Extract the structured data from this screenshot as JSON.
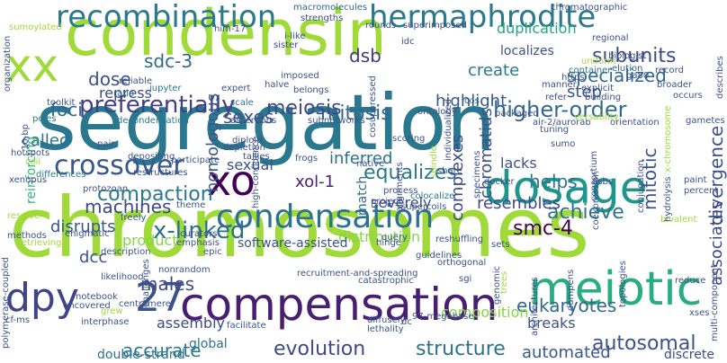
{
  "words": [
    {
      "text": "condensin",
      "color": "#a0da39"
    },
    {
      "text": "segregation",
      "color": "#2a788e"
    },
    {
      "text": "chromosomes",
      "color": "#a0da39"
    },
    {
      "text": "dosage",
      "color": "#1f968b"
    },
    {
      "text": "compensation",
      "color": "#481f70"
    },
    {
      "text": "meiotic",
      "color": "#27ad81"
    },
    {
      "text": "recombination",
      "color": "#2a788e"
    },
    {
      "text": "condensation",
      "color": "#2c728e"
    },
    {
      "text": "hermaphrodite",
      "color": "#2a788e"
    },
    {
      "text": "crossover",
      "color": "#38588c"
    },
    {
      "text": "xo",
      "color": "#440154"
    },
    {
      "text": "dpy",
      "color": "#414487"
    },
    {
      "text": "27",
      "color": "#3b528b"
    },
    {
      "text": "xx",
      "color": "#a0da39"
    },
    {
      "text": "mitosis",
      "color": "#31688e"
    },
    {
      "text": "meiosis",
      "color": "#3e4a89"
    },
    {
      "text": "higher-order",
      "color": "#31688e"
    },
    {
      "text": "preferentially",
      "color": "#433e85"
    },
    {
      "text": "x-linked",
      "color": "#2c728e"
    },
    {
      "text": "compaction",
      "color": "#2a788e"
    },
    {
      "text": "evolution",
      "color": "#3e4989"
    },
    {
      "text": "structure",
      "color": "#2c728e"
    },
    {
      "text": "autosomal",
      "color": "#3b528b"
    },
    {
      "text": "accurate",
      "color": "#2a788e"
    },
    {
      "text": "automated",
      "color": "#39568c"
    },
    {
      "text": "subunits",
      "color": "#3e4a89"
    },
    {
      "text": "specialized",
      "color": "#31688e"
    },
    {
      "text": "equalizes",
      "color": "#2a788e"
    },
    {
      "text": "achieve",
      "color": "#2c728e"
    },
    {
      "text": "smc-4",
      "color": "#440154"
    },
    {
      "text": "dsb",
      "color": "#453781"
    },
    {
      "text": "dose",
      "color": "#3b528b"
    },
    {
      "text": "sdc-3",
      "color": "#31688e"
    },
    {
      "text": "repress",
      "color": "#3e4a89"
    },
    {
      "text": "called",
      "color": "#2c728e"
    },
    {
      "text": "machines",
      "color": "#3e4989"
    },
    {
      "text": "disrupts",
      "color": "#38588c"
    },
    {
      "text": "dcc",
      "color": "#3b528b"
    },
    {
      "text": "males",
      "color": "#3e4a89"
    },
    {
      "text": "sexes",
      "color": "#3b528b"
    },
    {
      "text": "inferred",
      "color": "#2c728e"
    },
    {
      "text": "xol-1",
      "color": "#482576"
    },
    {
      "text": "resembles",
      "color": "#3e4a89"
    },
    {
      "text": "helps",
      "color": "#2a788e"
    },
    {
      "text": "eukaryotes",
      "color": "#31688e"
    },
    {
      "text": "breaks",
      "color": "#3b528b"
    },
    {
      "text": "complexes",
      "color": "#3e4989"
    },
    {
      "text": "chromatids",
      "color": "#3b528b"
    },
    {
      "text": "foci",
      "color": "#31688e"
    },
    {
      "text": "homologous",
      "color": "#38588c"
    },
    {
      "text": "mitotic",
      "color": "#3b528b"
    },
    {
      "text": "divergence",
      "color": "#3b528b"
    },
    {
      "text": "associates",
      "color": "#3e4989"
    },
    {
      "text": "highlight",
      "color": "#39568c"
    },
    {
      "text": "create",
      "color": "#2a788e"
    },
    {
      "text": "step",
      "color": "#3b528b"
    },
    {
      "text": "duplication",
      "color": "#22a884"
    },
    {
      "text": "localizes",
      "color": "#3b528b"
    },
    {
      "text": "distribution",
      "color": "#86d549"
    },
    {
      "text": "software-assisted",
      "color": "#3b528b"
    },
    {
      "text": "products",
      "color": "#86d549"
    },
    {
      "text": "assembly",
      "color": "#3e4a89"
    },
    {
      "text": "lacks",
      "color": "#3b528b"
    },
    {
      "text": "severely",
      "color": "#3e4a89"
    },
    {
      "text": "sexual",
      "color": "#3b528b"
    },
    {
      "text": "match",
      "color": "#31688e"
    },
    {
      "text": "composition",
      "color": "#86d549"
    },
    {
      "text": "global",
      "color": "#2c728e"
    },
    {
      "text": "double-strand",
      "color": "#2c728e"
    },
    {
      "text": "discrete",
      "color": "#3e4a89"
    },
    {
      "text": "reinforcing",
      "color": "#35b779"
    },
    {
      "text": "macromolecules",
      "color": "#31688e"
    },
    {
      "text": "strengths",
      "color": "#3e4a89"
    },
    {
      "text": "him-17",
      "color": "#3b528b"
    },
    {
      "text": "i-like",
      "color": "#3b528b"
    },
    {
      "text": "sister",
      "color": "#3e4a89"
    },
    {
      "text": "rounds",
      "color": "#3b528b"
    },
    {
      "text": "superimposed",
      "color": "#3e4a89"
    },
    {
      "text": "idc",
      "color": "#3b528b"
    },
    {
      "text": "chromatographic",
      "color": "#3b528b"
    },
    {
      "text": "regional",
      "color": "#3b528b"
    },
    {
      "text": "biologist",
      "color": "#3b528b"
    },
    {
      "text": "elution",
      "color": "#31688e"
    },
    {
      "text": "ga80",
      "color": "#3b528b"
    },
    {
      "text": "record",
      "color": "#3b528b"
    },
    {
      "text": "broader",
      "color": "#3b528b"
    },
    {
      "text": "occurs",
      "color": "#3b528b"
    },
    {
      "text": "sumoylated",
      "color": "#a0da39"
    },
    {
      "text": "manner",
      "color": "#3b528b"
    },
    {
      "text": "uniform",
      "color": "#a0da39"
    },
    {
      "text": "container",
      "color": "#2a788e"
    },
    {
      "text": "https",
      "color": "#3b528b"
    },
    {
      "text": "explicit",
      "color": "#3b528b"
    },
    {
      "text": "building",
      "color": "#3b528b"
    },
    {
      "text": "refer",
      "color": "#3b528b"
    },
    {
      "text": "cos",
      "color": "#2a788e"
    },
    {
      "text": "packaged",
      "color": "#3b528b"
    },
    {
      "text": "air-2/aurorab",
      "color": "#3b528b"
    },
    {
      "text": "orientation",
      "color": "#3b528b"
    },
    {
      "text": "versatility",
      "color": "#a0da39"
    },
    {
      "text": "gametes",
      "color": "#3b528b"
    },
    {
      "text": "jupyter",
      "color": "#2a788e"
    },
    {
      "text": "expert",
      "color": "#3b528b"
    },
    {
      "text": "halve",
      "color": "#3b528b"
    },
    {
      "text": "imposed",
      "color": "#3b528b"
    },
    {
      "text": "belongs",
      "color": "#3b528b"
    },
    {
      "text": "reliable",
      "color": "#3b528b"
    },
    {
      "text": "ratio",
      "color": "#2a788e"
    },
    {
      "text": "scale",
      "color": "#2a788e"
    },
    {
      "text": "toolkit",
      "color": "#3b528b"
    },
    {
      "text": "decondensation",
      "color": "#2a788e"
    },
    {
      "text": "assertions",
      "color": "#3b528b"
    },
    {
      "text": "subnetworks",
      "color": "#3b528b"
    },
    {
      "text": "poles",
      "color": "#2a788e"
    },
    {
      "text": "ontology",
      "color": "#3b528b"
    },
    {
      "text": "scoring",
      "color": "#3b528b"
    },
    {
      "text": "native",
      "color": "#3b528b"
    },
    {
      "text": "pair",
      "color": "#3b528b"
    },
    {
      "text": "diploid",
      "color": "#3b528b"
    },
    {
      "text": "depletion",
      "color": "#3b528b"
    },
    {
      "text": "tallies",
      "color": "#3b528b"
    },
    {
      "text": "frogs",
      "color": "#3b528b"
    },
    {
      "text": "hotspots",
      "color": "#3b528b"
    },
    {
      "text": "coil",
      "color": "#a0da39"
    },
    {
      "text": "depositing",
      "color": "#3b528b"
    },
    {
      "text": "participate",
      "color": "#3b528b"
    },
    {
      "text": "restructures",
      "color": "#3b528b"
    },
    {
      "text": "differences",
      "color": "#2a788e"
    },
    {
      "text": "spindle",
      "color": "#a0da39"
    },
    {
      "text": "share",
      "color": "#3b528b"
    },
    {
      "text": "sumo",
      "color": "#3b528b"
    },
    {
      "text": "tuning",
      "color": "#3b528b"
    },
    {
      "text": "xenopus",
      "color": "#3b528b"
    },
    {
      "text": "protozoan",
      "color": "#3b528b"
    },
    {
      "text": "theme",
      "color": "#3b528b"
    },
    {
      "text": "project",
      "color": "#3b528b"
    },
    {
      "text": "process",
      "color": "#3b528b"
    },
    {
      "text": "colocalize",
      "color": "#2a788e"
    },
    {
      "text": "supercoils",
      "color": "#3b528b"
    },
    {
      "text": "docker",
      "color": "#3b528b"
    },
    {
      "text": "dsbs",
      "color": "#3b528b"
    },
    {
      "text": "consortium",
      "color": "#3b528b"
    },
    {
      "text": "paint",
      "color": "#3b528b"
    },
    {
      "text": "percent",
      "color": "#3b528b"
    },
    {
      "text": "bivalent",
      "color": "#a0da39"
    },
    {
      "text": "resolve",
      "color": "#a0da39"
    },
    {
      "text": "freely",
      "color": "#3b528b"
    },
    {
      "text": "curators",
      "color": "#3b528b"
    },
    {
      "text": "emphasis",
      "color": "#3b528b"
    },
    {
      "text": "epic",
      "color": "#3b528b"
    },
    {
      "text": "reshuffling",
      "color": "#3b528b"
    },
    {
      "text": "query",
      "color": "#3b528b"
    },
    {
      "text": "hinge",
      "color": "#3b528b"
    },
    {
      "text": "guidelines",
      "color": "#3b528b"
    },
    {
      "text": "sets",
      "color": "#3b528b"
    },
    {
      "text": "topologies",
      "color": "#3b528b"
    },
    {
      "text": "multi-component",
      "color": "#3b528b"
    },
    {
      "text": "methods",
      "color": "#3b528b"
    },
    {
      "text": "enigmatic",
      "color": "#3b528b"
    },
    {
      "text": "retrieving",
      "color": "#a0da39"
    },
    {
      "text": "description",
      "color": "#3b528b"
    },
    {
      "text": "challenges",
      "color": "#3b528b"
    },
    {
      "text": "likelihood",
      "color": "#3b528b"
    },
    {
      "text": "nonrandom",
      "color": "#3b528b"
    },
    {
      "text": "orthogonal",
      "color": "#3b528b"
    },
    {
      "text": "architectures",
      "color": "#3b528b"
    },
    {
      "text": "dampens",
      "color": "#3b528b"
    },
    {
      "text": "reduce",
      "color": "#3b528b"
    },
    {
      "text": "sgi",
      "color": "#3b528b"
    },
    {
      "text": "catastrophic",
      "color": "#3b528b"
    },
    {
      "text": "recruitment-and-spreading",
      "color": "#3b528b"
    },
    {
      "text": "notebook",
      "color": "#3b528b"
    },
    {
      "text": "uncovered",
      "color": "#3b528b"
    },
    {
      "text": "centromere",
      "color": "#3b528b"
    },
    {
      "text": "grew",
      "color": "#a0da39"
    },
    {
      "text": "interphase",
      "color": "#3b528b"
    },
    {
      "text": "cf-ms",
      "color": "#3b528b"
    },
    {
      "text": "facilitate",
      "color": "#3b528b"
    },
    {
      "text": "diffusely",
      "color": "#3b528b"
    },
    {
      "text": "lethality",
      "color": "#3b528b"
    },
    {
      "text": "97-megabase",
      "color": "#3b528b"
    },
    {
      "text": "dc",
      "color": "#3b528b"
    },
    {
      "text": "xses",
      "color": "#3b528b"
    },
    {
      "text": "organization",
      "color": "#3b528b"
    },
    {
      "text": "polymerase-coupled",
      "color": "#3b528b"
    },
    {
      "text": "10-bp",
      "color": "#3b528b"
    },
    {
      "text": "cosuppressed",
      "color": "#3b528b"
    },
    {
      "text": "high-confidence",
      "color": "#3b528b"
    },
    {
      "text": "individualized",
      "color": "#3b528b"
    },
    {
      "text": "specimens",
      "color": "#3b528b"
    },
    {
      "text": "alignments",
      "color": "#3b528b"
    },
    {
      "text": "coexpression",
      "color": "#3b528b"
    },
    {
      "text": "conjugation",
      "color": "#3b528b"
    },
    {
      "text": "hydrolysis",
      "color": "#3b528b"
    },
    {
      "text": "genomic",
      "color": "#3b528b"
    },
    {
      "text": "trees",
      "color": "#a0da39"
    },
    {
      "text": "describes",
      "color": "#3b528b"
    },
    {
      "text": "x-chromosome",
      "color": "#a0da39"
    }
  ]
}
